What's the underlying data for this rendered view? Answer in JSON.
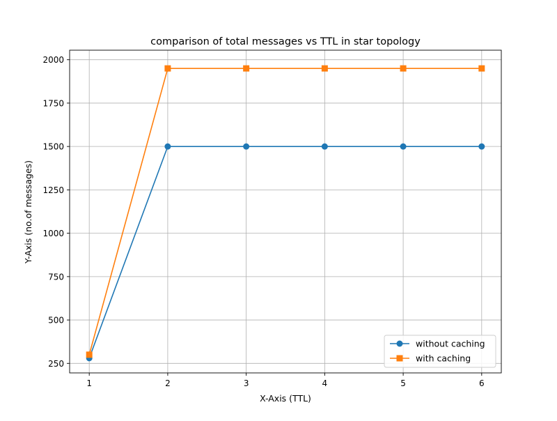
{
  "chart_data": {
    "type": "line",
    "title": "comparison of total messages vs TTL in star topology",
    "xlabel": "X-Axis (TTL)",
    "ylabel": "Y-Axis (no.of messages)",
    "x": [
      1,
      2,
      3,
      4,
      5,
      6
    ],
    "xlim": [
      0.75,
      6.25
    ],
    "ylim": [
      195,
      2055
    ],
    "xticks": [
      1,
      2,
      3,
      4,
      5,
      6
    ],
    "yticks": [
      250,
      500,
      750,
      1000,
      1250,
      1500,
      1750,
      2000
    ],
    "grid": true,
    "legend_position": "lower-right",
    "series": [
      {
        "name": "without caching",
        "values": [
          280,
          1500,
          1500,
          1500,
          1500,
          1500
        ],
        "color": "#1f77b4",
        "marker": "circle"
      },
      {
        "name": "with caching",
        "values": [
          300,
          1950,
          1950,
          1950,
          1950,
          1950
        ],
        "color": "#ff7f0e",
        "marker": "square"
      }
    ]
  }
}
